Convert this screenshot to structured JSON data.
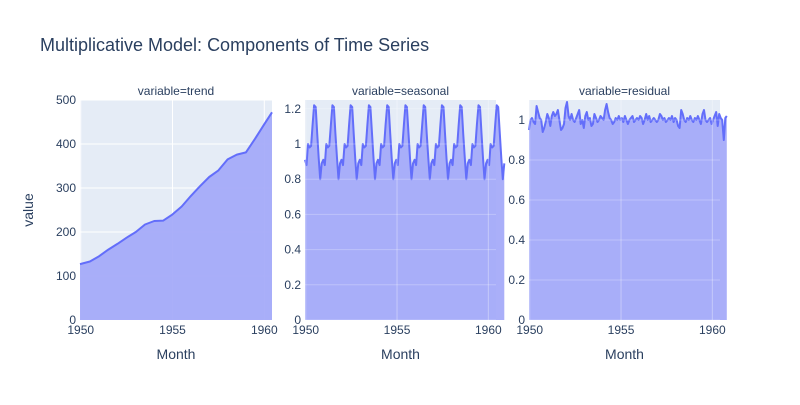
{
  "title": "Multiplicative Model: Components of Time Series",
  "colors": {
    "line": "#636efa",
    "fill": "#a3a8f8",
    "plot_bg": "#e5ecf6",
    "text": "#2a3f5f"
  },
  "chart_data": [
    {
      "type": "area",
      "facet_label": "variable=trend",
      "xlabel": "Month",
      "ylabel": "value",
      "xlim": [
        1949.96,
        1960.42
      ],
      "ylim": [
        0,
        500
      ],
      "x_ticks": [
        1950,
        1955,
        1960
      ],
      "y_ticks": [
        0,
        100,
        200,
        300,
        400,
        500
      ],
      "grid": true,
      "series": [
        {
          "x": [
            1949.96,
            1950.5,
            1951,
            1951.5,
            1952,
            1952.5,
            1953,
            1953.5,
            1954,
            1954.5,
            1955,
            1955.5,
            1956,
            1956.5,
            1957,
            1957.5,
            1958,
            1958.5,
            1959,
            1959.5,
            1960,
            1960.42
          ],
          "values": [
            127,
            133,
            145,
            160,
            173,
            187,
            200,
            217,
            225,
            226,
            240,
            258,
            282,
            304,
            325,
            340,
            365,
            376,
            381,
            412,
            445,
            472
          ]
        }
      ]
    },
    {
      "type": "area",
      "facet_label": "variable=seasonal",
      "xlabel": "Month",
      "ylabel": "",
      "xlim": [
        1949.96,
        1960.42
      ],
      "ylim": [
        0,
        1.25
      ],
      "x_ticks": [
        1950,
        1955,
        1960
      ],
      "y_ticks": [
        0,
        0.2,
        0.4,
        0.6,
        0.8,
        1,
        1.2
      ],
      "grid": false,
      "series": [
        {
          "x_start": 1949.96,
          "x_step": 0.08333,
          "repeat_years": 11,
          "pattern": [
            0.91,
            0.88,
            1.0,
            0.98,
            0.99,
            1.11,
            1.22,
            1.21,
            1.06,
            0.92,
            0.8,
            0.89
          ]
        }
      ]
    },
    {
      "type": "area",
      "facet_label": "variable=residual",
      "xlabel": "Month",
      "ylabel": "",
      "xlim": [
        1949.96,
        1960.42
      ],
      "ylim": [
        0,
        1.1
      ],
      "x_ticks": [
        1950,
        1955,
        1960
      ],
      "y_ticks": [
        0,
        0.2,
        0.4,
        0.6,
        0.8,
        1
      ],
      "grid": false,
      "series": [
        {
          "x_start": 1949.96,
          "x_step": 0.08333,
          "values": [
            0.95,
            1.0,
            1.01,
            0.99,
            0.98,
            1.07,
            1.04,
            1.01,
            1.0,
            0.94,
            0.96,
            0.99,
            1.03,
            1.01,
            0.97,
            1.02,
            1.04,
            1.02,
            1.03,
            1.05,
            1.0,
            0.95,
            0.96,
            0.98,
            1.06,
            1.09,
            1.02,
            1.0,
            1.03,
            1.0,
            0.99,
            1.01,
            1.03,
            1.05,
            0.98,
            1.0,
            0.96,
            1.02,
            1.04,
            1.0,
            1.01,
            0.97,
            0.98,
            1.03,
            1.01,
            0.99,
            1.0,
            1.02,
            1.01,
            1.0,
            1.05,
            1.08,
            1.04,
            1.01,
            1.0,
            0.98,
            0.99,
            1.01,
            1.0,
            1.02,
            1.0,
            1.01,
            0.99,
            1.02,
            1.0,
            0.98,
            1.0,
            1.01,
            1.02,
            0.99,
            1.0,
            1.01,
            1.0,
            1.02,
            1.01,
            0.98,
            1.0,
            1.03,
            1.0,
            1.02,
            0.99,
            1.0,
            1.01,
            1.0,
            0.99,
            1.0,
            1.03,
            1.02,
            1.0,
            1.01,
            0.99,
            1.0,
            1.01,
            1.0,
            1.02,
            0.99,
            1.01,
            1.0,
            0.97,
            0.96,
            1.05,
            1.03,
            1.0,
            0.99,
            1.01,
            1.0,
            1.02,
            1.0,
            0.99,
            1.01,
            1.0,
            1.02,
            1.0,
            0.98,
            1.03,
            1.05,
            1.0,
            0.99,
            1.0,
            1.01,
            0.98,
            1.0,
            1.02,
            1.04,
            0.97,
            1.03,
            1.01,
            1.0,
            0.9,
            1.01,
            1.02
          ]
        }
      ]
    }
  ]
}
